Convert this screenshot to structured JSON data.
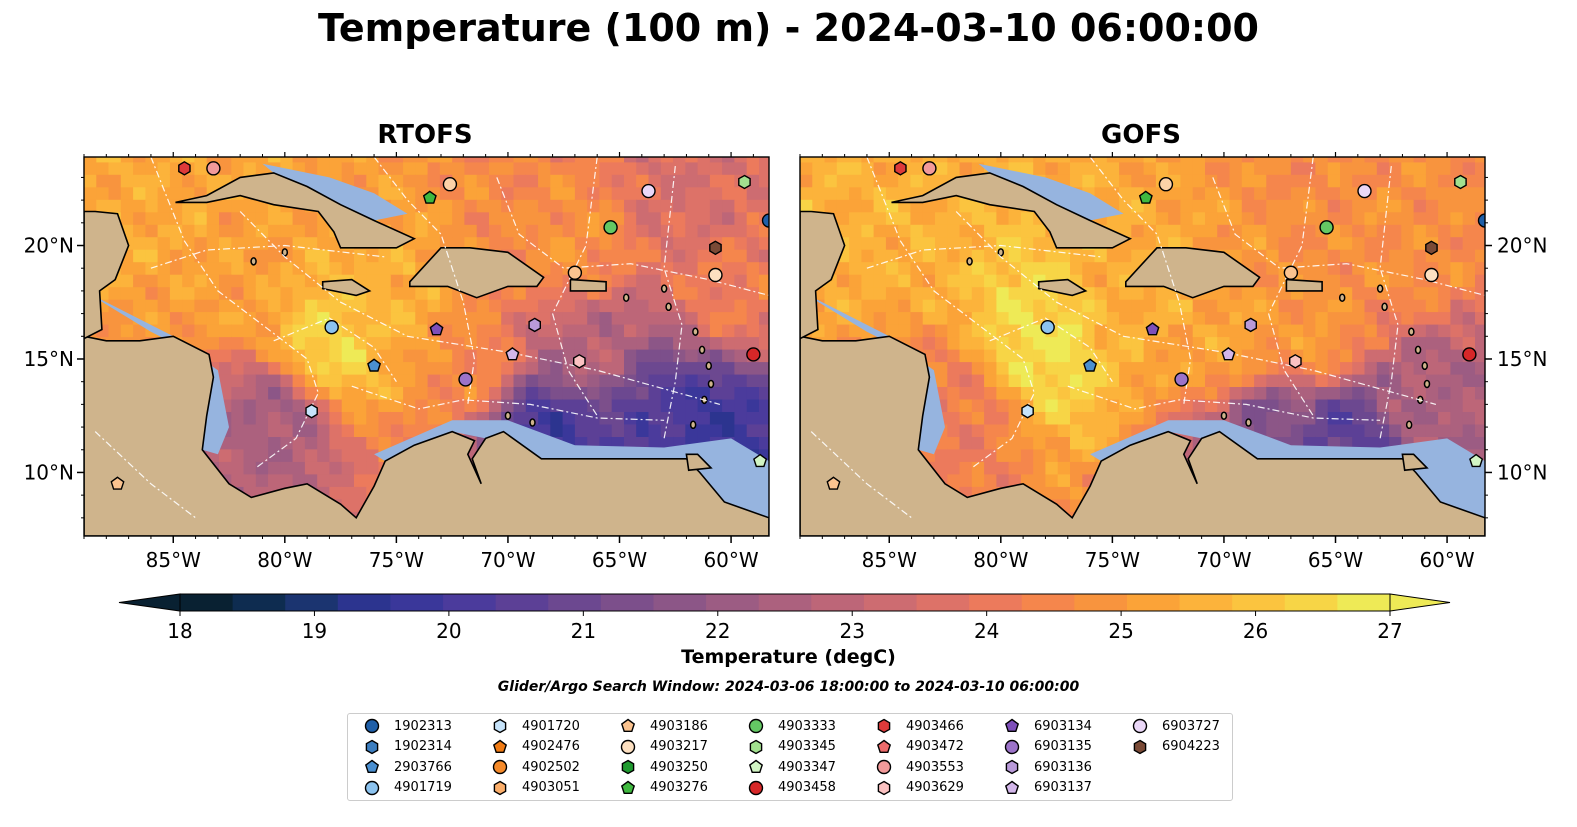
{
  "title": "Temperature (100 m) - 2024-03-10 06:00:00",
  "panels": [
    {
      "title": "RTOFS"
    },
    {
      "title": "GOFS"
    }
  ],
  "colors": {
    "land": "#cfb48c",
    "shallow_water": "#96b4df",
    "pacific": "#072234",
    "coast": "#000000",
    "eez_lines": "#ffffff"
  },
  "chart_data": {
    "type": "heatmap",
    "variable": "Temperature",
    "depth": "100 m",
    "time": "2024-03-10 06:00:00",
    "x_ticks": [
      "85°W",
      "80°W",
      "75°W",
      "70°W",
      "65°W",
      "60°W"
    ],
    "x_tick_values": [
      -85,
      -80,
      -75,
      -70,
      -65,
      -60
    ],
    "y_ticks": [
      "10°N",
      "15°N",
      "20°N"
    ],
    "y_tick_values": [
      10,
      15,
      20
    ],
    "xlim": [
      -89,
      -58.3
    ],
    "ylim": [
      7.2,
      23.9
    ],
    "colorbar": {
      "label": "Temperature (degC)",
      "min": 18,
      "max": 27,
      "ticks": [
        "18",
        "19",
        "20",
        "21",
        "22",
        "23",
        "24",
        "25",
        "26",
        "27"
      ],
      "extend": "both",
      "colors": [
        "#092132",
        "#0e2c50",
        "#1b3470",
        "#2c348f",
        "#3a379a",
        "#4b3b9c",
        "#5c4096",
        "#6c4890",
        "#7c4f8b",
        "#8c5687",
        "#9c5c83",
        "#ac617e",
        "#bd6678",
        "#cd6c71",
        "#dd7268",
        "#ec7a5c",
        "#f5864c",
        "#f8943e",
        "#fba338",
        "#fcb33b",
        "#fbc43f",
        "#f7d546",
        "#eeea56"
      ]
    },
    "fields": [
      {
        "panel": "RTOFS",
        "regions": [
          {
            "lon": -78.0,
            "lat": 15.6,
            "value": 26.4
          },
          {
            "lon": -75.0,
            "lat": 17.0,
            "value": 25.6
          },
          {
            "lon": -82.0,
            "lat": 18.5,
            "value": 25.2
          },
          {
            "lon": -72.0,
            "lat": 15.0,
            "value": 24.6
          },
          {
            "lon": -80.5,
            "lat": 12.5,
            "value": 22.4
          },
          {
            "lon": -66.0,
            "lat": 15.5,
            "value": 22.8
          },
          {
            "lon": -63.5,
            "lat": 13.0,
            "value": 20.5
          },
          {
            "lon": -68.0,
            "lat": 11.8,
            "value": 20.0
          },
          {
            "lon": -61.0,
            "lat": 12.0,
            "value": 19.8
          },
          {
            "lon": -60.0,
            "lat": 18.0,
            "value": 24.2
          },
          {
            "lon": -67.0,
            "lat": 20.0,
            "value": 24.8
          },
          {
            "lon": -62.0,
            "lat": 22.0,
            "value": 23.6
          },
          {
            "lon": -86.0,
            "lat": 22.0,
            "value": 25.4
          }
        ]
      },
      {
        "panel": "GOFS",
        "regions": [
          {
            "lon": -78.0,
            "lat": 15.6,
            "value": 26.6
          },
          {
            "lon": -74.0,
            "lat": 17.5,
            "value": 25.5
          },
          {
            "lon": -70.0,
            "lat": 15.5,
            "value": 25.3
          },
          {
            "lon": -66.0,
            "lat": 16.0,
            "value": 25.0
          },
          {
            "lon": -82.0,
            "lat": 12.5,
            "value": 24.2
          },
          {
            "lon": -68.0,
            "lat": 12.0,
            "value": 21.5
          },
          {
            "lon": -64.5,
            "lat": 11.5,
            "value": 20.5
          },
          {
            "lon": -61.0,
            "lat": 13.0,
            "value": 22.5
          },
          {
            "lon": -62.0,
            "lat": 20.0,
            "value": 24.8
          },
          {
            "lon": -86.0,
            "lat": 21.5,
            "value": 25.6
          }
        ]
      }
    ]
  },
  "colorbar_label": "Temperature (degC)",
  "search_window": "Glider/Argo Search Window: 2024-03-06 18:00:00 to 2024-03-10 06:00:00",
  "floats": [
    {
      "id": "1902313",
      "shape": "circle",
      "color": "#1f5fa8",
      "lon": -58.3,
      "lat": 21.1
    },
    {
      "id": "1902314",
      "shape": "hexagon",
      "color": "#3c7ec0",
      "lon": null,
      "lat": null
    },
    {
      "id": "2903766",
      "shape": "pentagon",
      "color": "#4a8fd0",
      "lon": -76.0,
      "lat": 14.7
    },
    {
      "id": "4901719",
      "shape": "circle",
      "color": "#8cc3ef",
      "lon": -77.9,
      "lat": 16.4
    },
    {
      "id": "4901720",
      "shape": "hexagon",
      "color": "#c6e3fa",
      "lon": -78.8,
      "lat": 12.7
    },
    {
      "id": "4902476",
      "shape": "pentagon",
      "color": "#f07b14",
      "lon": null,
      "lat": null
    },
    {
      "id": "4902502",
      "shape": "circle",
      "color": "#f58a2a",
      "lon": null,
      "lat": null
    },
    {
      "id": "4903051",
      "shape": "hexagon",
      "color": "#fbae6a",
      "lon": null,
      "lat": null
    },
    {
      "id": "4903186",
      "shape": "pentagon",
      "color": "#fbc38f",
      "lon": -87.5,
      "lat": 9.5
    },
    {
      "id": "4903217",
      "shape": "circle",
      "color": "#fde0c1",
      "lon": -60.7,
      "lat": 18.7
    },
    {
      "id": "4903250",
      "shape": "hexagon",
      "color": "#1f9a2f",
      "lon": null,
      "lat": null
    },
    {
      "id": "4903276",
      "shape": "pentagon",
      "color": "#3fb83f",
      "lon": -73.5,
      "lat": 22.1
    },
    {
      "id": "4903333",
      "shape": "circle",
      "color": "#64c864",
      "lon": -65.4,
      "lat": 20.8
    },
    {
      "id": "4903345",
      "shape": "hexagon",
      "color": "#a2e08f",
      "lon": -59.4,
      "lat": 22.8
    },
    {
      "id": "4903347",
      "shape": "pentagon",
      "color": "#d2f5c4",
      "lon": -58.7,
      "lat": 10.5
    },
    {
      "id": "4903458",
      "shape": "circle",
      "color": "#d62728",
      "lon": -59.0,
      "lat": 15.2
    },
    {
      "id": "4903466",
      "shape": "hexagon",
      "color": "#dd3a3a",
      "lon": -84.5,
      "lat": 23.4
    },
    {
      "id": "4903472",
      "shape": "pentagon",
      "color": "#ec6b6b",
      "lon": null,
      "lat": null
    },
    {
      "id": "4903553",
      "shape": "circle",
      "color": "#f29a9a",
      "lon": -83.2,
      "lat": 23.4
    },
    {
      "id": "4903629",
      "shape": "hexagon",
      "color": "#fbc2c2",
      "lon": -66.8,
      "lat": 14.9
    },
    {
      "id": "6903134",
      "shape": "pentagon",
      "color": "#7e4fb9",
      "lon": -73.2,
      "lat": 16.3
    },
    {
      "id": "6903135",
      "shape": "circle",
      "color": "#9c73c9",
      "lon": -71.9,
      "lat": 14.1
    },
    {
      "id": "6903136",
      "shape": "hexagon",
      "color": "#b99ad9",
      "lon": -68.8,
      "lat": 16.5
    },
    {
      "id": "6903137",
      "shape": "pentagon",
      "color": "#d3b7ea",
      "lon": -69.8,
      "lat": 15.2
    },
    {
      "id": "6903727",
      "shape": "circle",
      "color": "#ead7f7",
      "lon": -63.7,
      "lat": 22.4
    },
    {
      "id": "6904223",
      "shape": "hexagon",
      "color": "#7a4a36",
      "lon": -60.7,
      "lat": 19.9
    },
    {
      "id": "4903217b",
      "shape": "circle",
      "color": "#fcd2a8",
      "lon": -72.6,
      "lat": 22.7
    },
    {
      "id": "4903217c",
      "shape": "circle",
      "color": "#fbc38f",
      "lon": -67.0,
      "lat": 18.8
    }
  ]
}
